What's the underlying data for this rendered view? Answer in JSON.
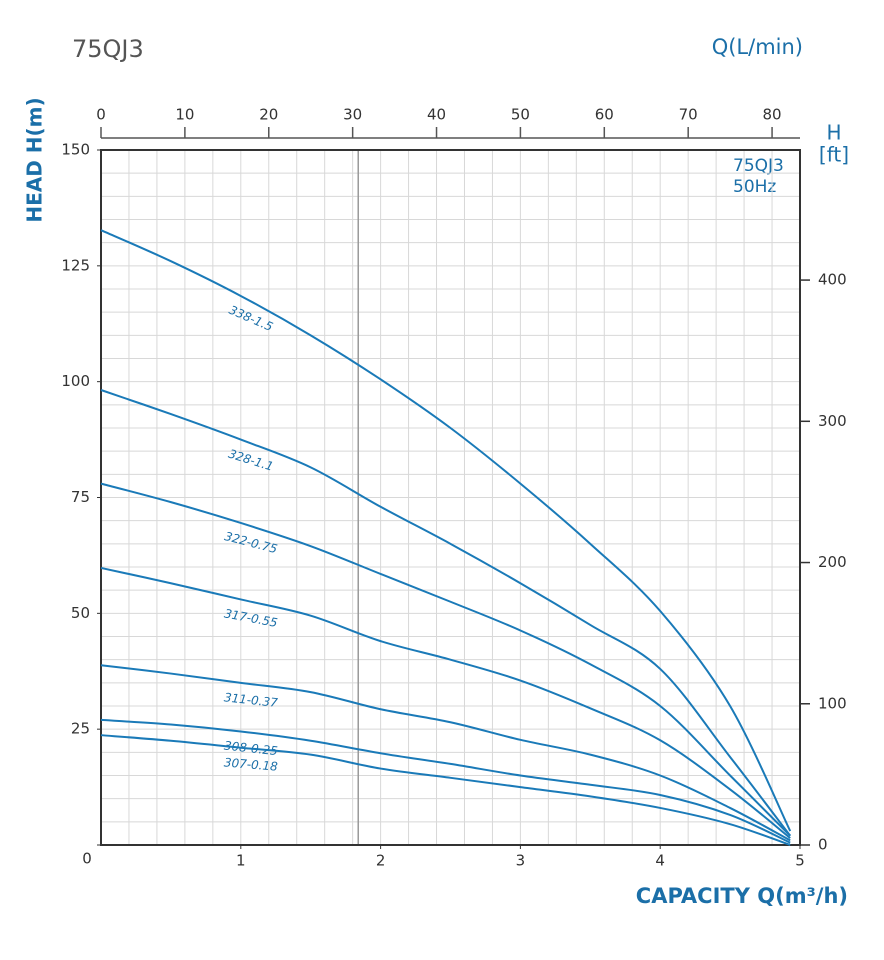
{
  "chart_data": {
    "type": "line",
    "title": "75QJ3",
    "top_axis_label": "Q(L/min)",
    "y_label": "HEAD H(m)",
    "y2_label_top": "H",
    "y2_label_bottom": "[ft]",
    "x_label": "CAPACITY Q(m³/h)",
    "box_lines": [
      "75QJ3",
      "50Hz"
    ],
    "x": [
      0,
      0.5,
      1,
      1.5,
      2,
      2.5,
      3,
      3.5,
      4,
      4.5,
      4.93
    ],
    "series": [
      {
        "name": "338-1.5",
        "color": "#1a7ab8",
        "values": [
          132.7,
          126,
          118.5,
          110,
          100.5,
          90,
          78,
          65,
          50.5,
          30,
          3
        ]
      },
      {
        "name": "328-1.1",
        "color": "#1a7ab8",
        "values": [
          98.2,
          93,
          87.5,
          81.5,
          73,
          65,
          56.5,
          47.5,
          38,
          19,
          2
        ]
      },
      {
        "name": "322-0.75",
        "color": "#1a7ab8",
        "values": [
          78,
          74,
          69.5,
          64.5,
          58.5,
          52.5,
          46.3,
          39,
          30,
          15,
          2
        ]
      },
      {
        "name": "317-0.55",
        "color": "#1a7ab8",
        "values": [
          59.8,
          56.5,
          53,
          49.5,
          44,
          40,
          35.5,
          29.5,
          22.6,
          12,
          1.5
        ]
      },
      {
        "name": "311-0.37",
        "color": "#1a7ab8",
        "values": [
          38.8,
          37,
          35,
          33,
          29.3,
          26.5,
          22.7,
          19.5,
          15,
          8,
          1
        ]
      },
      {
        "name": "308-0.25",
        "color": "#1a7ab8",
        "values": [
          27,
          26,
          24.5,
          22.5,
          19.8,
          17.5,
          15,
          13,
          10.8,
          6.5,
          0.5
        ]
      },
      {
        "name": "307-0.18",
        "color": "#1a7ab8",
        "values": [
          23.7,
          22.5,
          21,
          19.5,
          16.5,
          14.5,
          12.5,
          10.5,
          8,
          4.5,
          0
        ]
      }
    ],
    "xlim": [
      0,
      5
    ],
    "xticks": [
      1,
      2,
      3,
      4,
      5
    ],
    "ylim": [
      0,
      150
    ],
    "yticks": [
      0,
      25,
      50,
      75,
      100,
      125,
      150
    ],
    "top_xlim": [
      0,
      83.33
    ],
    "top_xticks": [
      0,
      10,
      20,
      30,
      40,
      50,
      60,
      70,
      80
    ],
    "y2lim": [
      0,
      492.1
    ],
    "y2ticks": [
      0,
      100,
      200,
      300,
      400
    ],
    "x_grid_step": 0.2,
    "y_grid_step": 5,
    "reference_x": 1.84,
    "grid": true
  }
}
